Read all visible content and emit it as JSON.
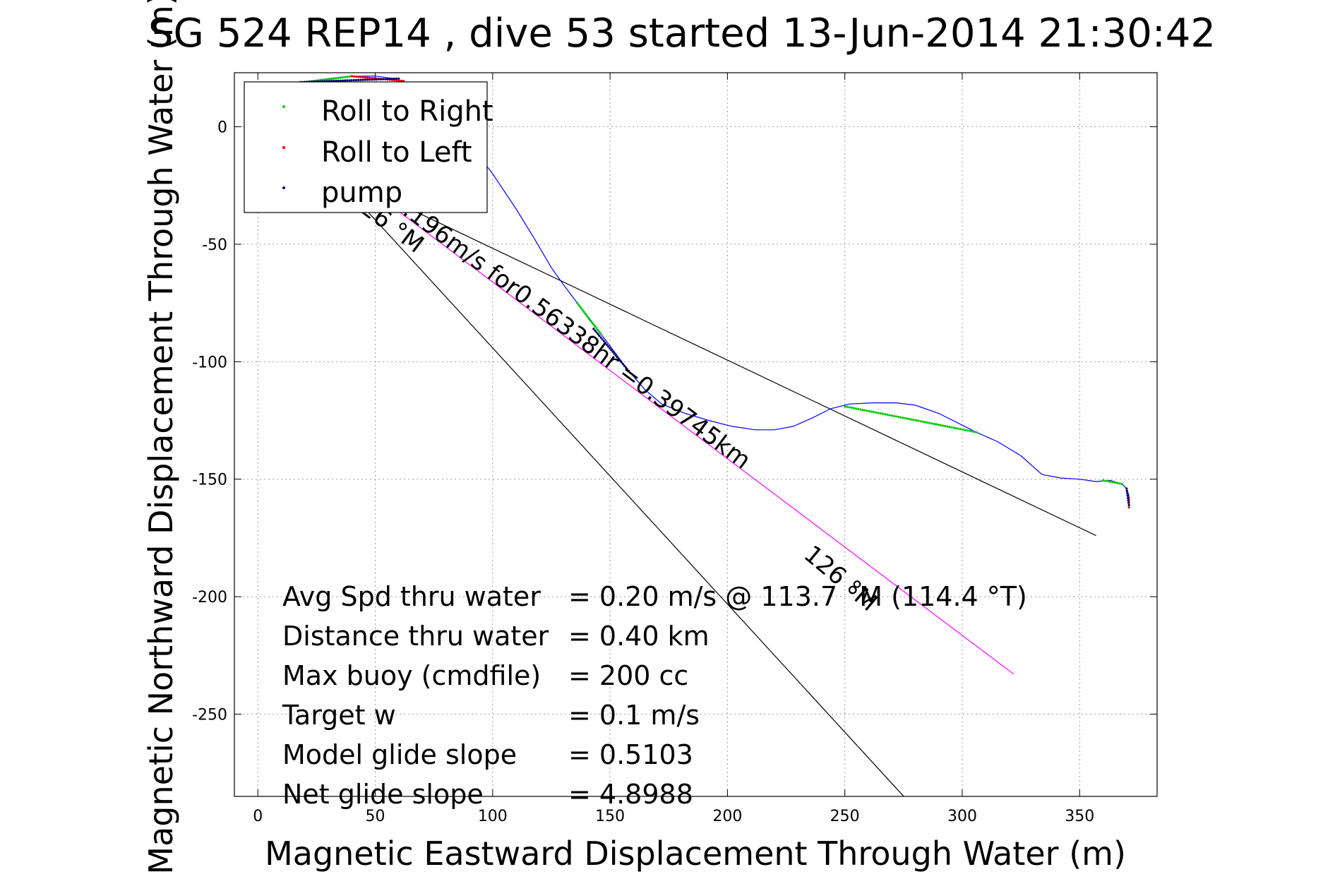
{
  "chart_data": {
    "type": "scatter",
    "title": "SG 524   REP14  , dive 53 started 13-Jun-2014 21:30:42",
    "xlabel": "Magnetic Eastward Displacement Through Water (m)",
    "ylabel": "Magnetic Northward Displacement Through Water (m)",
    "xlim": [
      -10,
      383
    ],
    "ylim": [
      -285,
      23
    ],
    "xticks": [
      0,
      50,
      100,
      150,
      200,
      250,
      300,
      350
    ],
    "yticks": [
      0,
      -50,
      -100,
      -150,
      -200,
      -250
    ],
    "grid": true,
    "legend_position": "top-left",
    "legend": [
      {
        "label": "Roll to Right",
        "color": "#00cc00"
      },
      {
        "label": "Roll to Left",
        "color": "#ff0000"
      },
      {
        "label": "pump",
        "color": "#000066"
      }
    ],
    "series": [
      {
        "name": "track",
        "style": "line",
        "color": "#0000ff",
        "points": [
          [
            20,
            19
          ],
          [
            30,
            20.5
          ],
          [
            40,
            21.5
          ],
          [
            50,
            21.6
          ],
          [
            58,
            20.5
          ],
          [
            65,
            18
          ],
          [
            72,
            12
          ],
          [
            82,
            2
          ],
          [
            90,
            -7
          ],
          [
            100,
            -20
          ],
          [
            110,
            -35
          ],
          [
            118,
            -48
          ],
          [
            125,
            -60
          ],
          [
            130,
            -67
          ],
          [
            136,
            -75
          ],
          [
            141,
            -82
          ],
          [
            146,
            -88
          ],
          [
            152,
            -96
          ],
          [
            158,
            -104
          ],
          [
            165,
            -112
          ],
          [
            172,
            -118
          ],
          [
            182,
            -122
          ],
          [
            192,
            -125
          ],
          [
            202,
            -127.5
          ],
          [
            212,
            -129
          ],
          [
            220,
            -129
          ],
          [
            228,
            -127.5
          ],
          [
            236,
            -124
          ],
          [
            244,
            -120
          ],
          [
            252,
            -118
          ],
          [
            262,
            -117.5
          ],
          [
            272,
            -117.5
          ],
          [
            280,
            -118.5
          ],
          [
            290,
            -122
          ],
          [
            300,
            -127
          ],
          [
            306,
            -130
          ],
          [
            315,
            -134
          ],
          [
            325,
            -140
          ],
          [
            334,
            -148
          ],
          [
            342,
            -149.5
          ],
          [
            350,
            -150
          ],
          [
            357,
            -151
          ],
          [
            363,
            -150.5
          ],
          [
            368,
            -152
          ],
          [
            370,
            -154
          ],
          [
            371,
            -157
          ],
          [
            371,
            -162
          ]
        ]
      },
      {
        "name": "Roll to Right",
        "style": "dots",
        "color": "#00cc00",
        "segments": [
          [
            [
              20,
              19
            ],
            [
              40,
              21.5
            ]
          ],
          [
            [
              136,
              -75
            ],
            [
              146,
              -88
            ]
          ],
          [
            [
              250,
              -119
            ],
            [
              306,
              -130
            ]
          ],
          [
            [
              360,
              -150.5
            ],
            [
              368,
              -152
            ]
          ]
        ]
      },
      {
        "name": "Roll to Left",
        "style": "dots",
        "color": "#ff0000",
        "segments": [
          [
            [
              40,
              21.5
            ],
            [
              62,
              19.5
            ]
          ],
          [
            [
              371,
              -158
            ],
            [
              371,
              -162
            ]
          ]
        ]
      },
      {
        "name": "pump",
        "style": "dots",
        "color": "#000066",
        "segments": [
          [
            [
              18,
              19
            ],
            [
              60,
              20.5
            ]
          ],
          [
            [
              143,
              -86
            ],
            [
              158,
              -104
            ]
          ],
          [
            [
              370,
              -154
            ],
            [
              371,
              -161
            ]
          ]
        ]
      }
    ],
    "lines": [
      {
        "name": "heading-line",
        "color": "#000000",
        "from": [
          48,
          -27
        ],
        "to": [
          357,
          -174
        ]
      },
      {
        "name": "steep-line",
        "color": "#000000",
        "from": [
          43,
          -32
        ],
        "to": [
          276,
          -286
        ]
      },
      {
        "name": "track-line",
        "color": "#ff00ff",
        "from": [
          48,
          -27
        ],
        "to": [
          322,
          -233
        ]
      }
    ],
    "annotations": [
      {
        "text": "126 °M",
        "x": 38,
        "y": -32,
        "rotation": 37
      },
      {
        "text": "0.196m/s for0.56338hr =0.39745km",
        "x": 56,
        "y": -33,
        "rotation": 36.9
      },
      {
        "text": "126 °M",
        "x": 232,
        "y": -183,
        "rotation": 40
      }
    ],
    "stats": [
      {
        "label": "Avg Spd thru water",
        "value": "=  0.20 m/s @ 113.7 °M (114.4 °T)"
      },
      {
        "label": "Distance thru water",
        "value": "=  0.40 km"
      },
      {
        "label": "Max buoy (cmdfile)",
        "value": "= 200 cc"
      },
      {
        "label": "Target w",
        "value": "= 0.1 m/s"
      },
      {
        "label": "Model glide slope",
        "value": "= 0.5103"
      },
      {
        "label": "Net glide slope",
        "value": "= 4.8988"
      }
    ]
  }
}
